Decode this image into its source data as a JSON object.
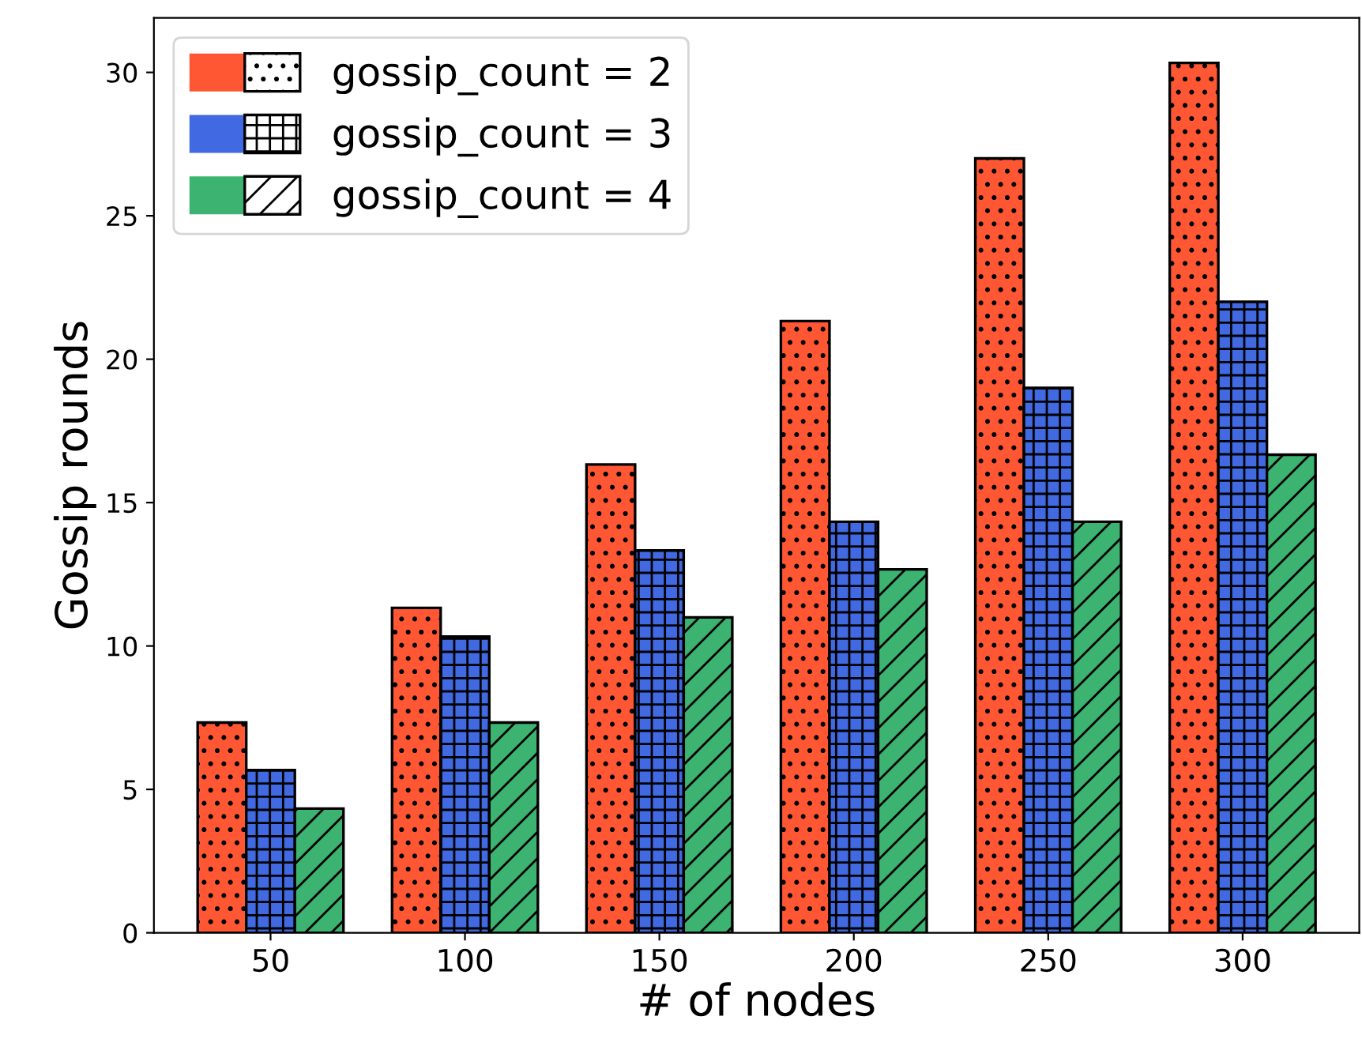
{
  "chart_data": {
    "type": "bar",
    "xlabel": "# of nodes",
    "ylabel": "Gossip rounds",
    "categories": [
      "50",
      "100",
      "150",
      "200",
      "250",
      "300"
    ],
    "series": [
      {
        "name": "gossip_count = 2",
        "color": "#ff5733",
        "values": [
          7.33,
          11.33,
          16.33,
          21.33,
          27.0,
          30.33
        ]
      },
      {
        "name": "gossip_count = 3",
        "color": "#4169e1",
        "values": [
          5.67,
          10.33,
          13.33,
          14.33,
          19.0,
          22.0
        ]
      },
      {
        "name": "gossip_count = 4",
        "color": "#3cb371",
        "values": [
          4.33,
          7.33,
          11.0,
          12.67,
          14.33,
          16.67
        ]
      }
    ],
    "ylim": [
      0,
      31.9
    ],
    "yticks": [
      0,
      5,
      10,
      15,
      20,
      25,
      30
    ],
    "grid": false,
    "legend": "top left"
  }
}
